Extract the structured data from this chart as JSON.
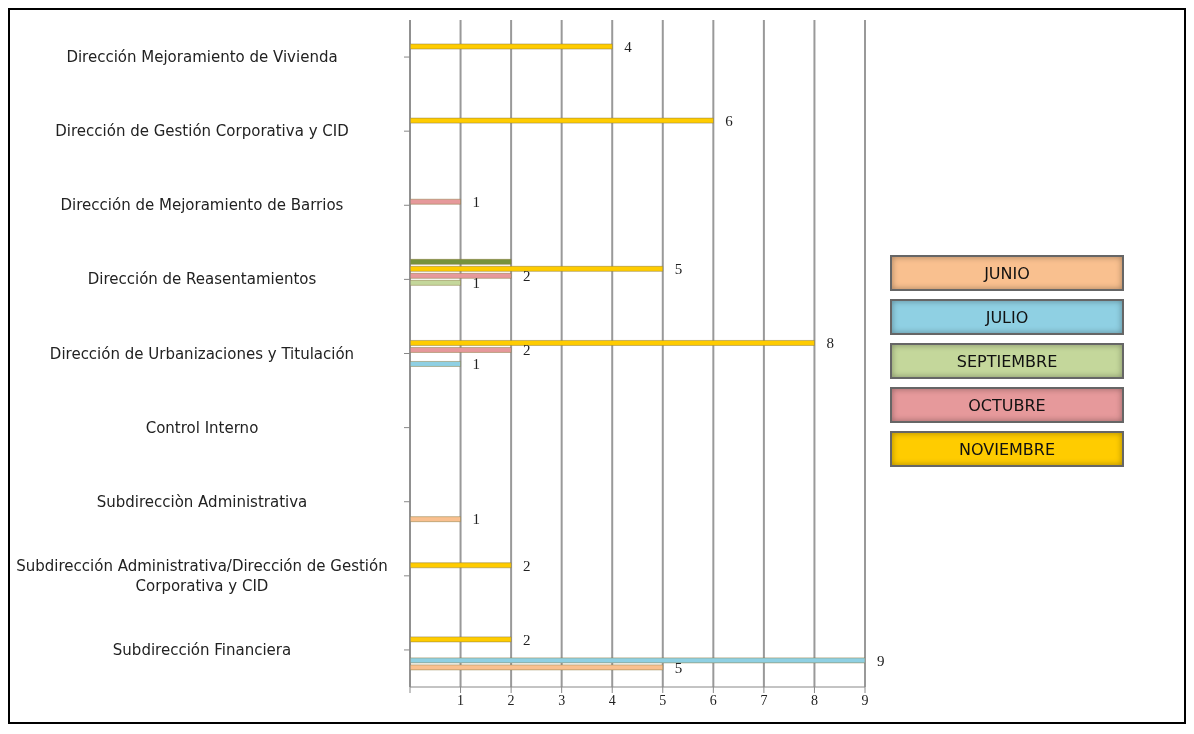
{
  "chart_data": {
    "type": "bar",
    "orientation": "horizontal",
    "categories": [
      "Dirección Mejoramiento de Vivienda",
      "Dirección de Gestión Corporativa y CID",
      "Dirección de Mejoramiento de Barrios",
      "Dirección de Reasentamientos",
      "Dirección de Urbanizaciones y Titulación",
      "Control Interno",
      "Subdirecciòn Administrativa",
      "Subdirección Administrativa/Dirección de Gestión Corporativa y CID",
      "Subdirección Financiera"
    ],
    "series": [
      {
        "name": "JUNIO",
        "color": "#f9c08f",
        "values": [
          0,
          0,
          0,
          0,
          0,
          0,
          1,
          0,
          5
        ],
        "value_labels": [
          null,
          null,
          null,
          null,
          null,
          null,
          "1",
          null,
          "5"
        ]
      },
      {
        "name": "JULIO",
        "color": "#8fd0e3",
        "values": [
          0,
          0,
          0,
          0,
          1,
          0,
          0,
          0,
          9
        ],
        "value_labels": [
          null,
          null,
          null,
          null,
          "1",
          null,
          null,
          null,
          "9"
        ]
      },
      {
        "name": "SEPTIEMBRE",
        "color": "#c4d79b",
        "values": [
          0,
          0,
          0,
          1,
          0,
          0,
          0,
          0,
          0
        ],
        "value_labels": [
          null,
          null,
          null,
          "1",
          null,
          null,
          null,
          null,
          null
        ]
      },
      {
        "name": "OCTUBRE",
        "color": "#e6999b",
        "values": [
          0,
          0,
          1,
          2,
          2,
          0,
          0,
          0,
          0
        ],
        "value_labels": [
          null,
          null,
          "1",
          "2",
          "2",
          null,
          null,
          null,
          null
        ]
      },
      {
        "name": "NOVIEMBRE",
        "color": "#ffcc00",
        "values": [
          4,
          6,
          0,
          5,
          8,
          0,
          0,
          2,
          2
        ],
        "value_labels": [
          "4",
          "6",
          null,
          "5",
          "8",
          null,
          null,
          "2",
          "2"
        ]
      },
      {
        "color": "#76923c",
        "values": [
          0,
          0,
          0,
          2,
          0,
          0,
          0,
          0,
          0
        ]
      }
    ],
    "xlim": [
      0,
      9
    ],
    "xticks": [
      {
        "value": 0,
        "label": null
      },
      1,
      2,
      3,
      4,
      5,
      6,
      7,
      8,
      9
    ],
    "grid": "x",
    "legend": "right"
  }
}
